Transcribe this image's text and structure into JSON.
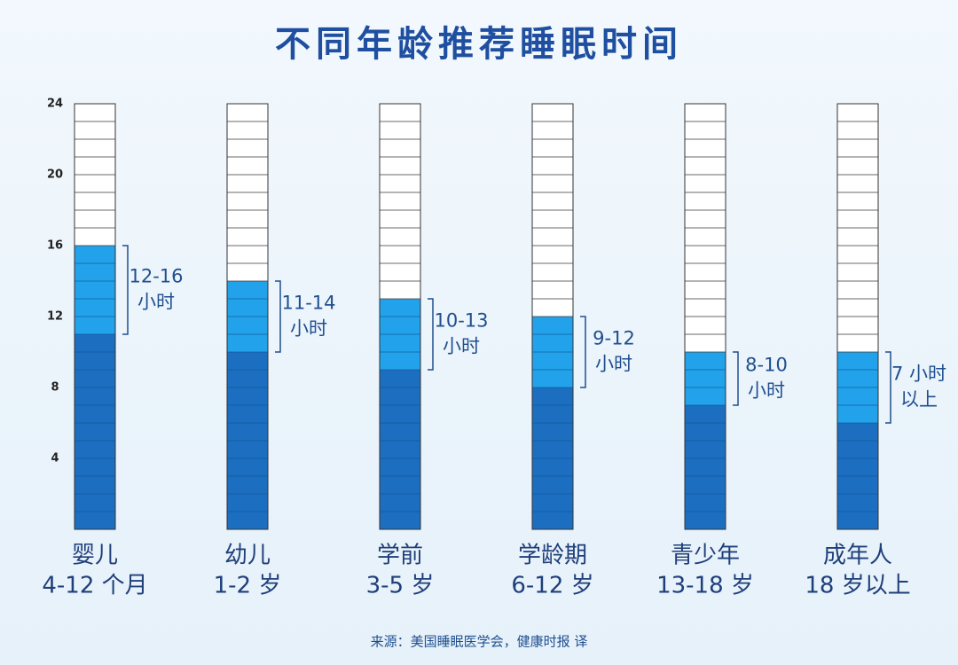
{
  "chart_data": {
    "type": "stacked_bar",
    "title": "不同年龄推荐睡眠时间",
    "categories": [
      "婴儿",
      "幼儿",
      "学前",
      "学龄期",
      "青少年",
      "成年人"
    ],
    "category_sublabels": [
      "4-12 个月",
      "1-2 岁",
      "3-5 岁",
      "6-12 岁",
      "13-18 岁",
      "18 岁以上"
    ],
    "series": [
      {
        "color": "#1c6fc0",
        "values": [
          11,
          10,
          9,
          8,
          7,
          6
        ]
      },
      {
        "color": "#22a2ea",
        "values": [
          5,
          4,
          4,
          4,
          3,
          4
        ]
      }
    ],
    "annotations": [
      [
        "12-16",
        "小时"
      ],
      [
        "11-14",
        "小时"
      ],
      [
        "10-13",
        "小时"
      ],
      [
        "9-12",
        "小时"
      ],
      [
        "8-10",
        "小时"
      ],
      [
        "7 小时",
        "以上"
      ]
    ],
    "ylim": [
      0,
      24
    ],
    "yticks": [
      4,
      8,
      12,
      16,
      20,
      24
    ],
    "source": "来源：美国睡眠医学会，健康时报 译"
  }
}
